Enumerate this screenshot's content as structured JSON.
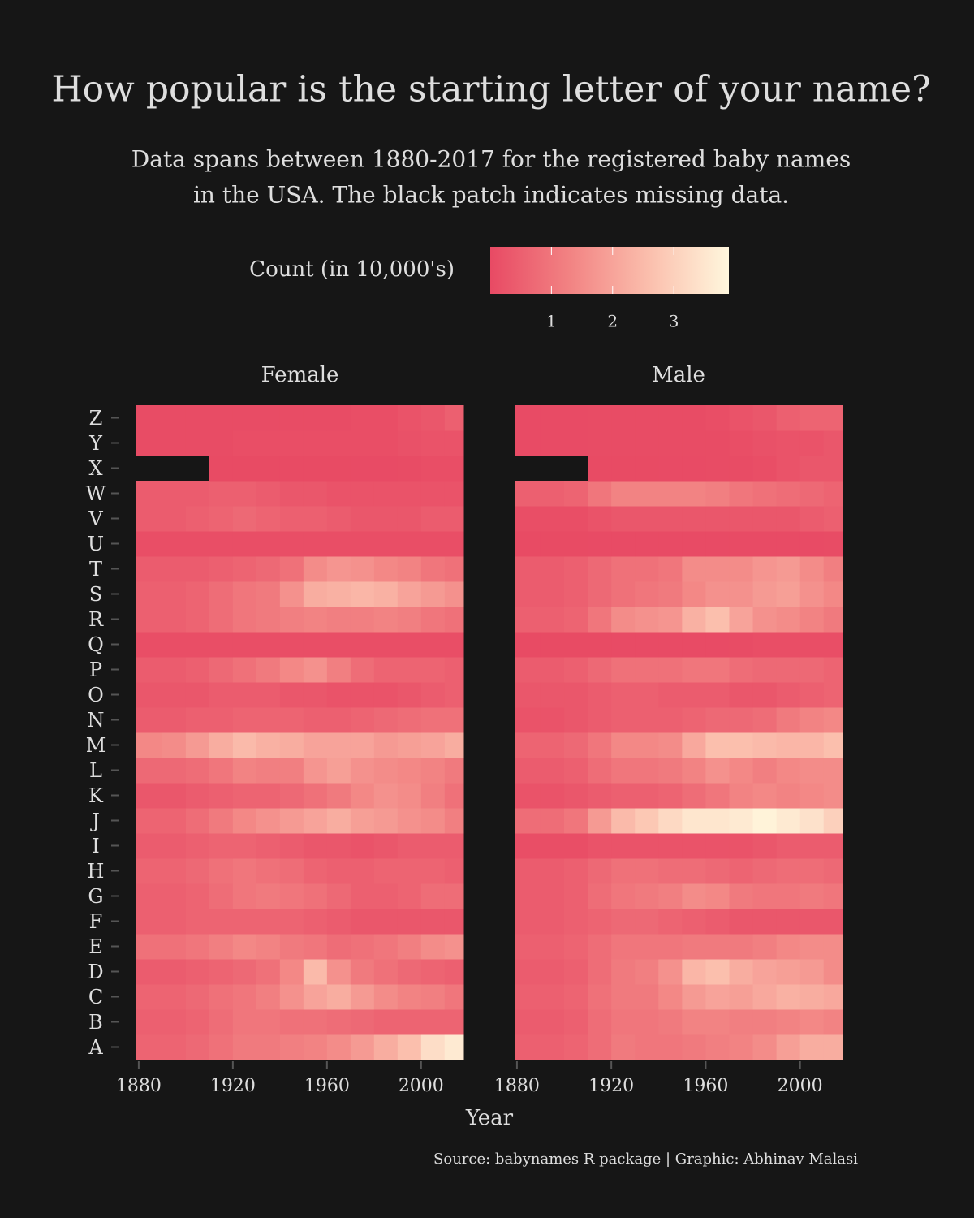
{
  "chart_data": {
    "type": "heatmap",
    "title": "How popular is the starting letter of your name?",
    "subtitle": [
      "Data spans between 1880-2017 for the registered baby names",
      "in the USA. The black patch indicates missing data."
    ],
    "colorbar": {
      "title": "Count (in 10,000's)",
      "lim": [
        0,
        3.9
      ],
      "ticks": [
        1,
        2,
        3
      ],
      "colors": [
        "#e84a64",
        "#f28383",
        "#fbbfad",
        "#fff7dd"
      ]
    },
    "x_label": "Year",
    "x": [
      1880,
      1890,
      1900,
      1910,
      1920,
      1930,
      1940,
      1950,
      1960,
      1970,
      1980,
      1990,
      2000,
      2010
    ],
    "xlim": [
      1879,
      2018
    ],
    "xticks": [
      1880,
      1920,
      1960,
      2000
    ],
    "categories": [
      "A",
      "B",
      "C",
      "D",
      "E",
      "F",
      "G",
      "H",
      "I",
      "J",
      "K",
      "L",
      "M",
      "N",
      "O",
      "P",
      "Q",
      "R",
      "S",
      "T",
      "U",
      "V",
      "W",
      "X",
      "Y",
      "Z"
    ],
    "panels": [
      {
        "name": "Female",
        "values": [
          [
            0.6,
            0.6,
            0.7,
            0.9,
            1.1,
            1.1,
            1.2,
            1.3,
            1.5,
            1.8,
            2.2,
            2.6,
            3.3,
            3.6
          ],
          [
            0.5,
            0.5,
            0.6,
            0.8,
            1.0,
            1.0,
            0.9,
            0.9,
            0.8,
            0.7,
            0.6,
            0.6,
            0.6,
            0.6
          ],
          [
            0.6,
            0.6,
            0.7,
            0.9,
            1.0,
            1.2,
            1.6,
            2.0,
            2.2,
            1.8,
            1.5,
            1.3,
            1.2,
            1.0
          ],
          [
            0.4,
            0.4,
            0.5,
            0.6,
            0.7,
            0.9,
            1.4,
            2.5,
            1.6,
            1.1,
            0.9,
            0.7,
            0.6,
            0.5
          ],
          [
            0.9,
            0.9,
            1.0,
            1.2,
            1.4,
            1.3,
            1.1,
            1.0,
            0.8,
            0.9,
            1.0,
            1.2,
            1.5,
            1.6
          ],
          [
            0.5,
            0.5,
            0.6,
            0.6,
            0.6,
            0.6,
            0.6,
            0.5,
            0.4,
            0.3,
            0.3,
            0.3,
            0.3,
            0.3
          ],
          [
            0.5,
            0.5,
            0.6,
            0.8,
            1.0,
            1.1,
            1.0,
            0.9,
            0.7,
            0.5,
            0.5,
            0.6,
            0.8,
            0.8
          ],
          [
            0.6,
            0.6,
            0.7,
            0.9,
            1.0,
            0.9,
            0.8,
            0.6,
            0.5,
            0.5,
            0.6,
            0.6,
            0.6,
            0.5
          ],
          [
            0.4,
            0.4,
            0.5,
            0.6,
            0.6,
            0.5,
            0.4,
            0.3,
            0.3,
            0.2,
            0.3,
            0.4,
            0.4,
            0.4
          ],
          [
            0.6,
            0.6,
            0.8,
            1.1,
            1.4,
            1.6,
            1.8,
            2.0,
            2.2,
            1.9,
            1.8,
            1.6,
            1.5,
            1.2
          ],
          [
            0.3,
            0.3,
            0.4,
            0.5,
            0.6,
            0.6,
            0.7,
            0.9,
            1.1,
            1.4,
            1.6,
            1.5,
            1.2,
            0.9
          ],
          [
            0.7,
            0.7,
            0.8,
            1.0,
            1.3,
            1.2,
            1.2,
            1.7,
            1.9,
            1.6,
            1.5,
            1.4,
            1.3,
            1.1
          ],
          [
            1.4,
            1.5,
            1.8,
            2.2,
            2.5,
            2.3,
            2.2,
            2.0,
            2.0,
            2.0,
            1.8,
            1.9,
            2.0,
            2.2
          ],
          [
            0.4,
            0.4,
            0.5,
            0.5,
            0.6,
            0.6,
            0.6,
            0.5,
            0.5,
            0.6,
            0.7,
            0.8,
            0.9,
            0.9
          ],
          [
            0.3,
            0.3,
            0.3,
            0.4,
            0.4,
            0.4,
            0.3,
            0.3,
            0.2,
            0.2,
            0.2,
            0.3,
            0.4,
            0.5
          ],
          [
            0.4,
            0.4,
            0.5,
            0.7,
            0.9,
            1.1,
            1.4,
            1.6,
            1.2,
            0.8,
            0.6,
            0.6,
            0.6,
            0.5
          ],
          [
            0.1,
            0.1,
            0.1,
            0.1,
            0.1,
            0.1,
            0.1,
            0.1,
            0.1,
            0.1,
            0.1,
            0.1,
            0.1,
            0.1
          ],
          [
            0.5,
            0.5,
            0.6,
            0.8,
            1.0,
            1.1,
            1.2,
            1.3,
            1.2,
            1.2,
            1.3,
            1.2,
            1.0,
            0.9
          ],
          [
            0.5,
            0.5,
            0.6,
            0.8,
            1.0,
            1.1,
            1.6,
            2.2,
            2.3,
            2.4,
            2.3,
            2.0,
            1.8,
            1.6
          ],
          [
            0.4,
            0.4,
            0.4,
            0.5,
            0.6,
            0.7,
            0.9,
            1.5,
            1.7,
            1.6,
            1.4,
            1.3,
            1.0,
            0.9
          ],
          [
            0.1,
            0.1,
            0.1,
            0.1,
            0.1,
            0.1,
            0.1,
            0.1,
            0.1,
            0.1,
            0.1,
            0.1,
            0.1,
            0.1
          ],
          [
            0.4,
            0.4,
            0.5,
            0.6,
            0.7,
            0.6,
            0.5,
            0.5,
            0.4,
            0.3,
            0.3,
            0.3,
            0.4,
            0.4
          ],
          [
            0.4,
            0.4,
            0.4,
            0.5,
            0.5,
            0.4,
            0.3,
            0.3,
            0.2,
            0.2,
            0.2,
            0.2,
            0.2,
            0.2
          ],
          [
            null,
            null,
            null,
            0.02,
            0.02,
            0.02,
            0.02,
            0.02,
            0.02,
            0.03,
            0.03,
            0.05,
            0.08,
            0.1
          ],
          [
            0.05,
            0.05,
            0.05,
            0.05,
            0.1,
            0.1,
            0.1,
            0.1,
            0.1,
            0.1,
            0.1,
            0.15,
            0.2,
            0.2
          ],
          [
            0.05,
            0.05,
            0.05,
            0.05,
            0.05,
            0.05,
            0.05,
            0.05,
            0.05,
            0.1,
            0.1,
            0.2,
            0.3,
            0.5
          ]
        ]
      },
      {
        "name": "Male",
        "values": [
          [
            0.5,
            0.5,
            0.6,
            0.8,
            1.1,
            1.0,
            1.0,
            1.1,
            1.2,
            1.3,
            1.5,
            1.9,
            2.2,
            2.2
          ],
          [
            0.4,
            0.4,
            0.5,
            0.8,
            1.0,
            1.0,
            1.1,
            1.3,
            1.3,
            1.2,
            1.2,
            1.3,
            1.4,
            1.3
          ],
          [
            0.5,
            0.5,
            0.6,
            0.9,
            1.1,
            1.1,
            1.4,
            1.8,
            2.0,
            1.9,
            2.1,
            2.3,
            2.2,
            2.1
          ],
          [
            0.4,
            0.4,
            0.5,
            0.8,
            1.1,
            1.2,
            1.6,
            2.4,
            2.6,
            2.2,
            2.0,
            1.9,
            1.8,
            1.5
          ],
          [
            0.5,
            0.5,
            0.6,
            0.8,
            1.0,
            1.0,
            1.0,
            1.1,
            1.1,
            1.1,
            1.2,
            1.4,
            1.5,
            1.5
          ],
          [
            0.4,
            0.4,
            0.5,
            0.6,
            0.7,
            0.7,
            0.6,
            0.5,
            0.4,
            0.3,
            0.3,
            0.3,
            0.3,
            0.3
          ],
          [
            0.4,
            0.4,
            0.5,
            0.8,
            1.0,
            1.1,
            1.2,
            1.5,
            1.4,
            1.1,
            1.0,
            1.0,
            1.1,
            1.0
          ],
          [
            0.4,
            0.4,
            0.5,
            0.7,
            0.9,
            0.9,
            0.8,
            0.8,
            0.7,
            0.6,
            0.7,
            0.8,
            0.8,
            0.7
          ],
          [
            0.1,
            0.1,
            0.1,
            0.2,
            0.2,
            0.2,
            0.2,
            0.2,
            0.2,
            0.2,
            0.3,
            0.4,
            0.4,
            0.4
          ],
          [
            0.8,
            0.8,
            1.0,
            1.8,
            2.5,
            2.8,
            3.2,
            3.5,
            3.5,
            3.6,
            3.8,
            3.6,
            3.4,
            3.0
          ],
          [
            0.2,
            0.2,
            0.3,
            0.4,
            0.5,
            0.5,
            0.6,
            0.8,
            1.0,
            1.3,
            1.4,
            1.3,
            1.4,
            1.5
          ],
          [
            0.4,
            0.4,
            0.5,
            0.8,
            1.0,
            1.0,
            1.1,
            1.3,
            1.6,
            1.4,
            1.2,
            1.4,
            1.5,
            1.5
          ],
          [
            0.6,
            0.6,
            0.7,
            1.0,
            1.4,
            1.4,
            1.5,
            2.1,
            2.6,
            2.6,
            2.5,
            2.4,
            2.4,
            2.6
          ],
          [
            0.2,
            0.2,
            0.3,
            0.4,
            0.5,
            0.5,
            0.5,
            0.6,
            0.7,
            0.7,
            0.8,
            1.1,
            1.3,
            1.4
          ],
          [
            0.3,
            0.3,
            0.3,
            0.4,
            0.5,
            0.5,
            0.4,
            0.4,
            0.4,
            0.3,
            0.3,
            0.4,
            0.5,
            0.6
          ],
          [
            0.4,
            0.4,
            0.5,
            0.7,
            0.9,
            0.9,
            0.9,
            1.0,
            1.0,
            0.8,
            0.7,
            0.7,
            0.7,
            0.6
          ],
          [
            0.02,
            0.02,
            0.02,
            0.02,
            0.03,
            0.03,
            0.03,
            0.03,
            0.03,
            0.05,
            0.1,
            0.1,
            0.1,
            0.1
          ],
          [
            0.5,
            0.5,
            0.6,
            1.0,
            1.5,
            1.6,
            1.7,
            2.3,
            2.6,
            2.0,
            1.6,
            1.5,
            1.3,
            1.1
          ],
          [
            0.4,
            0.4,
            0.5,
            0.7,
            0.9,
            1.0,
            1.1,
            1.4,
            1.6,
            1.6,
            1.8,
            1.9,
            1.6,
            1.4
          ],
          [
            0.4,
            0.4,
            0.5,
            0.7,
            0.9,
            0.9,
            1.0,
            1.5,
            1.5,
            1.5,
            1.7,
            1.8,
            1.5,
            1.2
          ],
          [
            0.02,
            0.02,
            0.02,
            0.03,
            0.03,
            0.03,
            0.03,
            0.03,
            0.03,
            0.03,
            0.03,
            0.03,
            0.03,
            0.05
          ],
          [
            0.1,
            0.1,
            0.1,
            0.2,
            0.3,
            0.3,
            0.3,
            0.3,
            0.3,
            0.3,
            0.3,
            0.3,
            0.4,
            0.5
          ],
          [
            0.5,
            0.5,
            0.6,
            1.0,
            1.3,
            1.3,
            1.3,
            1.3,
            1.2,
            1.0,
            0.9,
            0.8,
            0.7,
            0.6
          ],
          [
            null,
            null,
            null,
            0.02,
            0.02,
            0.02,
            0.03,
            0.03,
            0.05,
            0.05,
            0.1,
            0.2,
            0.3,
            0.3
          ],
          [
            0.03,
            0.03,
            0.03,
            0.05,
            0.05,
            0.05,
            0.05,
            0.05,
            0.05,
            0.1,
            0.15,
            0.2,
            0.2,
            0.3
          ],
          [
            0.03,
            0.03,
            0.03,
            0.05,
            0.05,
            0.05,
            0.05,
            0.05,
            0.1,
            0.2,
            0.3,
            0.5,
            0.6,
            0.6
          ]
        ]
      }
    ],
    "caption": "Source: babynames R package | Graphic: Abhinav Malasi"
  }
}
